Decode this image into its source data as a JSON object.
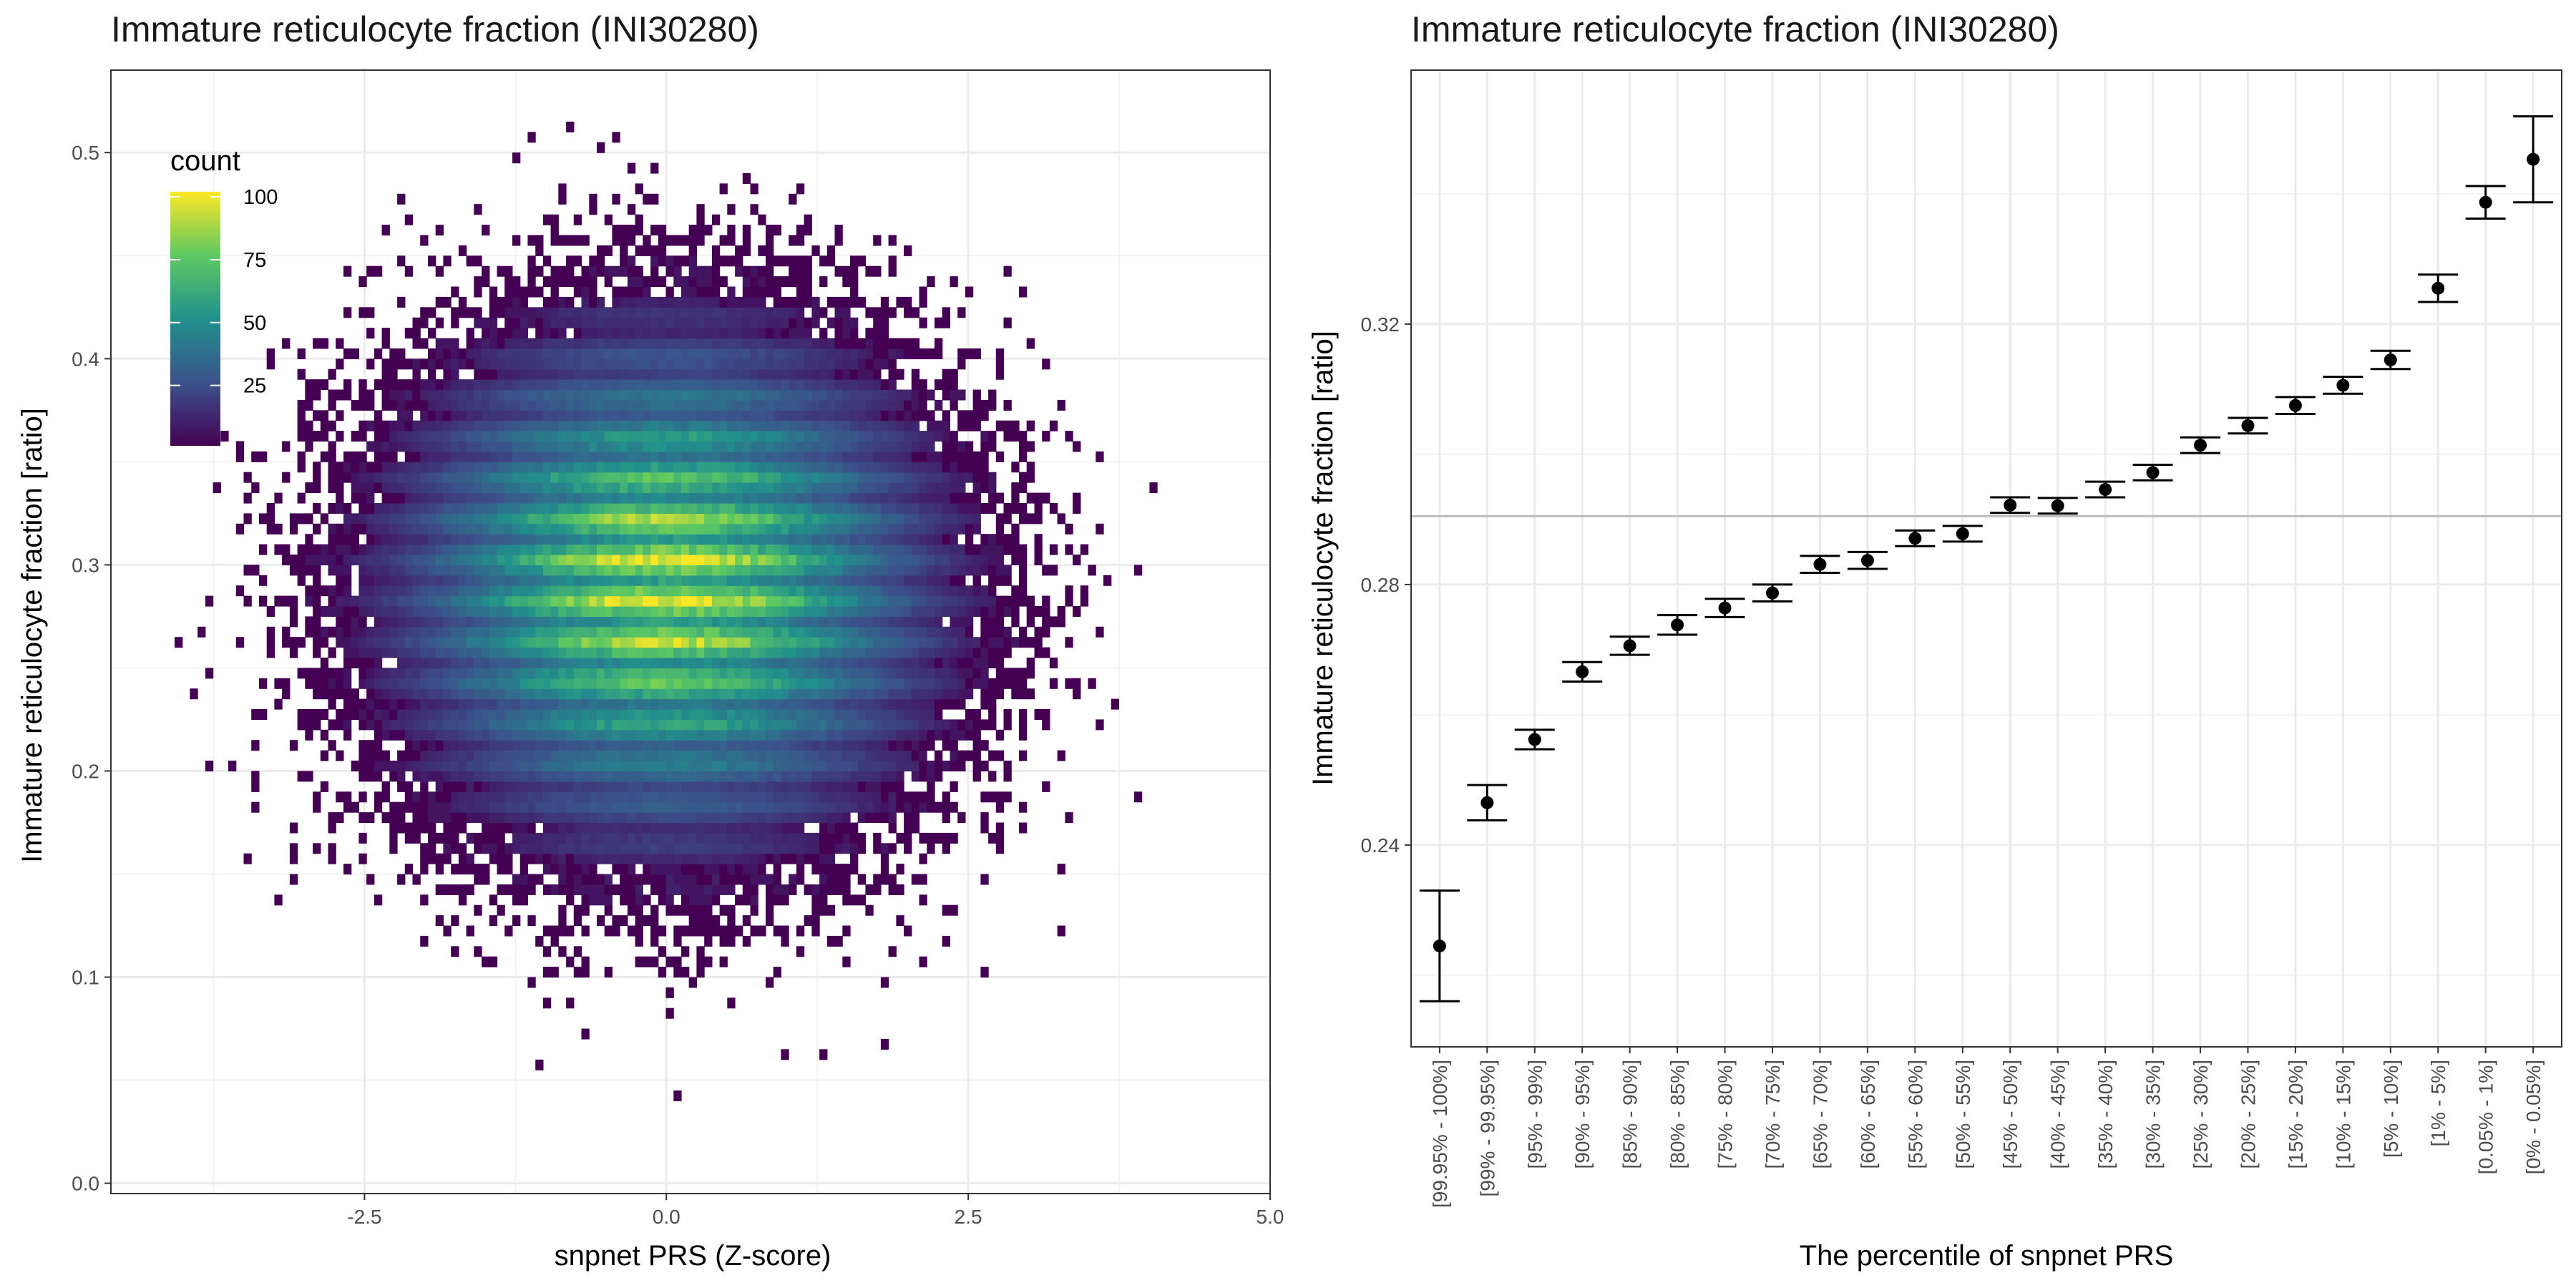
{
  "chart_data": [
    {
      "type": "heatmap",
      "title": "Immature reticulocyte fraction (INI30280)",
      "xlabel": "snpnet PRS (Z-score)",
      "ylabel": "Immature reticulocyte fraction [ratio]",
      "xlim": [
        -4.6,
        5.0
      ],
      "ylim": [
        -0.005,
        0.54
      ],
      "x_ticks": [
        -2.5,
        0.0,
        2.5,
        5.0
      ],
      "x_tick_labels": [
        "-2.5",
        "0.0",
        "2.5",
        "5.0"
      ],
      "y_ticks": [
        0.0,
        0.1,
        0.2,
        0.3,
        0.4,
        0.5
      ],
      "y_tick_labels": [
        "0.0",
        "0.1",
        "0.2",
        "0.3",
        "0.4",
        "0.5"
      ],
      "grid": true,
      "legend": {
        "title": "count",
        "placement": "top-left",
        "breaks": [
          25,
          50,
          75,
          100
        ],
        "break_labels": [
          "25",
          "50",
          "75",
          "100"
        ],
        "min": 1,
        "max": 102
      },
      "bins_x": 140,
      "bins_y": 100,
      "density": {
        "center_x": 0.0,
        "center_y": 0.29,
        "sd_x": 1.0,
        "sd_y": 0.055,
        "peak_count": 100
      },
      "colorscale": [
        "#440154",
        "#3b528b",
        "#21918c",
        "#5ec962",
        "#fde725"
      ]
    },
    {
      "type": "scatter",
      "title": "Immature reticulocyte fraction (INI30280)",
      "xlabel": "The percentile of snpnet PRS",
      "ylabel": "Immature reticulocyte fraction [ratio]",
      "ylim": [
        0.209,
        0.359
      ],
      "y_ticks": [
        0.24,
        0.28,
        0.32
      ],
      "y_tick_labels": [
        "0.24",
        "0.28",
        "0.32"
      ],
      "reference_line": 0.2905,
      "grid": true,
      "categories": [
        "[99.95% - 100%]",
        "[99% - 99.95%]",
        "[95% - 99%]",
        "[90% - 95%]",
        "[85% - 90%]",
        "[80% - 85%]",
        "[75% - 80%]",
        "[70% - 75%]",
        "[65% - 70%]",
        "[60% - 65%]",
        "[55% - 60%]",
        "[50% - 55%]",
        "[45% - 50%]",
        "[40% - 45%]",
        "[35% - 40%]",
        "[30% - 35%]",
        "[25% - 30%]",
        "[20% - 25%]",
        "[15% - 20%]",
        "[10% - 15%]",
        "[5% - 10%]",
        "[1% - 5%]",
        "[0.05% - 1%]",
        "[0% - 0.05%]"
      ],
      "values": [
        0.2245,
        0.2465,
        0.2562,
        0.2666,
        0.2706,
        0.2738,
        0.2764,
        0.2787,
        0.2831,
        0.2837,
        0.2871,
        0.2878,
        0.2922,
        0.2921,
        0.2946,
        0.2972,
        0.3014,
        0.3044,
        0.3075,
        0.3106,
        0.3145,
        0.3255,
        0.3387,
        0.3453
      ],
      "lower": [
        0.216,
        0.2438,
        0.2547,
        0.2651,
        0.2692,
        0.2723,
        0.275,
        0.2774,
        0.2818,
        0.2824,
        0.2859,
        0.2866,
        0.291,
        0.2909,
        0.2934,
        0.296,
        0.3002,
        0.3032,
        0.3062,
        0.3093,
        0.3131,
        0.3234,
        0.3362,
        0.3387
      ],
      "upper": [
        0.233,
        0.2492,
        0.2577,
        0.2681,
        0.272,
        0.2753,
        0.2778,
        0.28,
        0.2844,
        0.285,
        0.2883,
        0.289,
        0.2934,
        0.2933,
        0.2958,
        0.2984,
        0.3026,
        0.3056,
        0.3088,
        0.3119,
        0.3159,
        0.3276,
        0.3412,
        0.3519
      ]
    }
  ]
}
